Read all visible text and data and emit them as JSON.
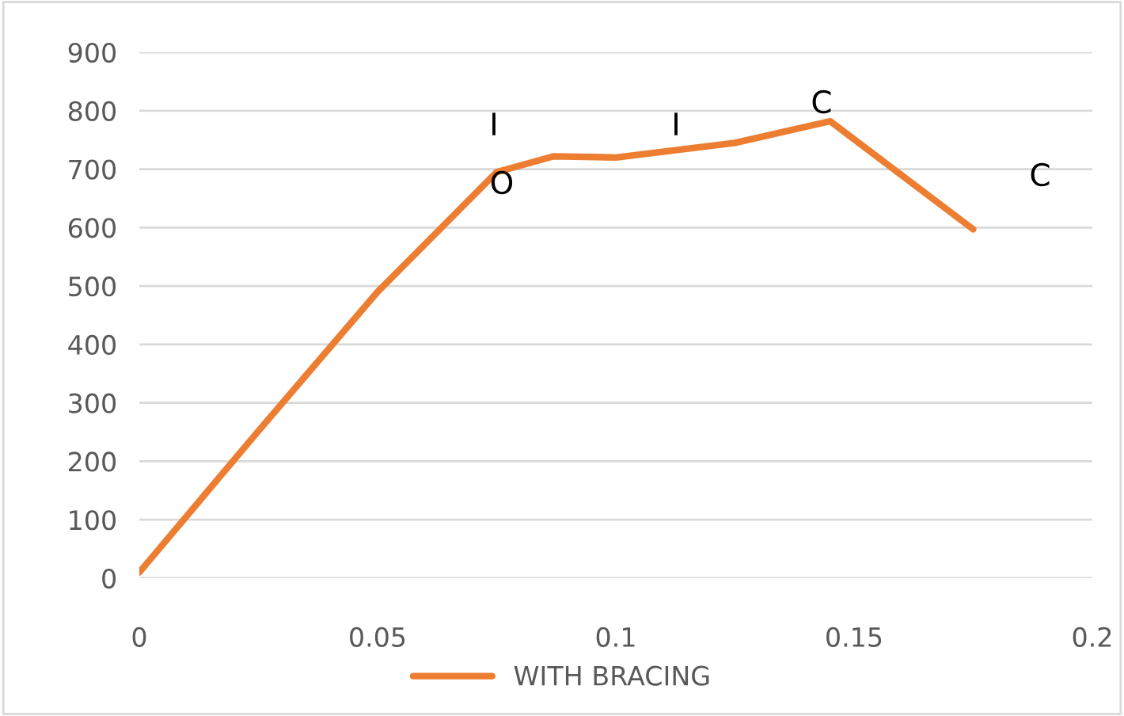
{
  "chart_data": {
    "type": "line",
    "x": [
      0,
      0.025,
      0.05,
      0.075,
      0.087,
      0.1,
      0.125,
      0.145,
      0.175
    ],
    "series": [
      {
        "name": "WITH BRACING",
        "color": "#ed7d31",
        "values": [
          10,
          252,
          490,
          695,
          722,
          720,
          745,
          782,
          597
        ]
      }
    ],
    "xlim": [
      0,
      0.2
    ],
    "xticks": [
      0,
      0.05,
      0.1,
      0.15,
      0.2
    ],
    "ylim": [
      0,
      900
    ],
    "yticks": [
      0,
      100,
      200,
      300,
      400,
      500,
      600,
      700,
      800,
      900
    ],
    "grid": "y",
    "legend": "bottom",
    "marker": "none",
    "line_style": "solid",
    "annotations": [
      "I",
      "O",
      "I",
      "C",
      "C"
    ]
  }
}
